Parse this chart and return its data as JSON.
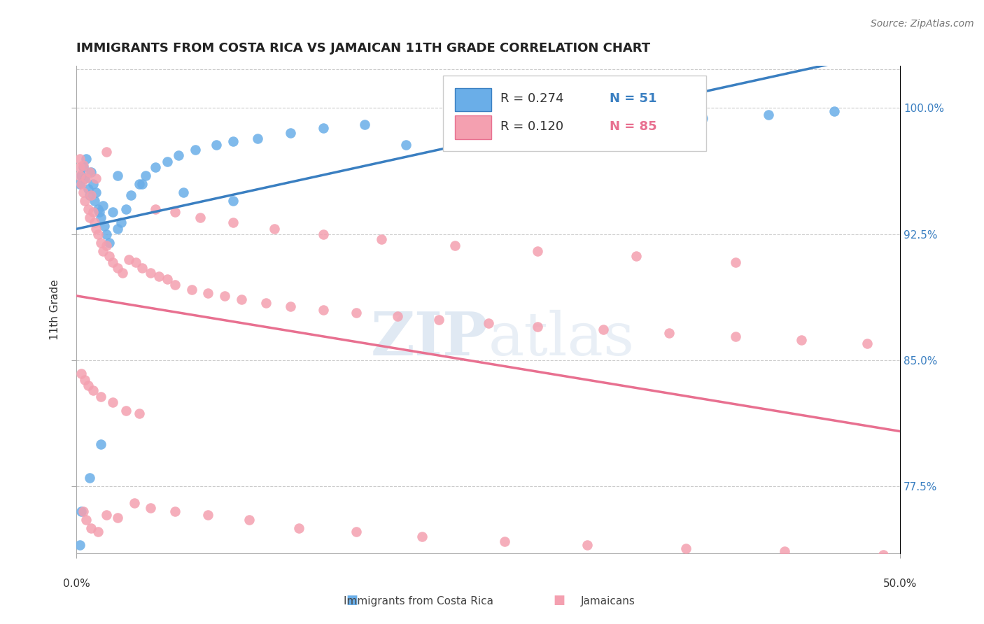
{
  "title": "IMMIGRANTS FROM COSTA RICA VS JAMAICAN 11TH GRADE CORRELATION CHART",
  "source_text": "Source: ZipAtlas.com",
  "ylabel": "11th Grade",
  "ytick_values": [
    0.775,
    0.85,
    0.925,
    1.0
  ],
  "xmin": 0.0,
  "xmax": 0.5,
  "ymin": 0.735,
  "ymax": 1.025,
  "legend_r1": "R = 0.274",
  "legend_n1": "N = 51",
  "legend_r2": "R = 0.120",
  "legend_n2": "N = 85",
  "color_blue": "#6aaee8",
  "color_pink": "#f4a0b0",
  "color_blue_line": "#3a7fc1",
  "color_pink_line": "#e87090",
  "watermark_zip": "ZIP",
  "watermark_atlas": "atlas",
  "costa_rica_x": [
    0.002,
    0.003,
    0.004,
    0.005,
    0.006,
    0.007,
    0.008,
    0.009,
    0.01,
    0.011,
    0.012,
    0.013,
    0.014,
    0.015,
    0.016,
    0.017,
    0.018,
    0.02,
    0.022,
    0.025,
    0.027,
    0.03,
    0.033,
    0.038,
    0.042,
    0.048,
    0.055,
    0.062,
    0.072,
    0.085,
    0.095,
    0.11,
    0.13,
    0.15,
    0.175,
    0.2,
    0.23,
    0.26,
    0.3,
    0.34,
    0.38,
    0.42,
    0.46,
    0.002,
    0.003,
    0.008,
    0.015,
    0.025,
    0.04,
    0.065,
    0.095
  ],
  "costa_rica_y": [
    0.955,
    0.96,
    0.965,
    0.958,
    0.97,
    0.952,
    0.948,
    0.962,
    0.955,
    0.945,
    0.95,
    0.94,
    0.938,
    0.935,
    0.942,
    0.93,
    0.925,
    0.92,
    0.938,
    0.928,
    0.932,
    0.94,
    0.948,
    0.955,
    0.96,
    0.965,
    0.968,
    0.972,
    0.975,
    0.978,
    0.98,
    0.982,
    0.985,
    0.988,
    0.99,
    0.978,
    0.982,
    0.985,
    0.988,
    0.992,
    0.994,
    0.996,
    0.998,
    0.74,
    0.76,
    0.78,
    0.8,
    0.96,
    0.955,
    0.95,
    0.945
  ],
  "jamaican_x": [
    0.002,
    0.003,
    0.004,
    0.005,
    0.006,
    0.007,
    0.008,
    0.009,
    0.01,
    0.011,
    0.012,
    0.013,
    0.015,
    0.016,
    0.018,
    0.02,
    0.022,
    0.025,
    0.028,
    0.032,
    0.036,
    0.04,
    0.045,
    0.05,
    0.055,
    0.06,
    0.07,
    0.08,
    0.09,
    0.1,
    0.115,
    0.13,
    0.15,
    0.17,
    0.195,
    0.22,
    0.25,
    0.28,
    0.32,
    0.36,
    0.4,
    0.44,
    0.48,
    0.003,
    0.005,
    0.007,
    0.01,
    0.015,
    0.022,
    0.03,
    0.038,
    0.048,
    0.06,
    0.075,
    0.095,
    0.12,
    0.15,
    0.185,
    0.23,
    0.28,
    0.34,
    0.4,
    0.002,
    0.004,
    0.006,
    0.009,
    0.013,
    0.018,
    0.025,
    0.035,
    0.045,
    0.06,
    0.08,
    0.105,
    0.135,
    0.17,
    0.21,
    0.26,
    0.31,
    0.37,
    0.43,
    0.49,
    0.002,
    0.004,
    0.008,
    0.012,
    0.018
  ],
  "jamaican_y": [
    0.96,
    0.955,
    0.95,
    0.945,
    0.958,
    0.94,
    0.935,
    0.948,
    0.938,
    0.932,
    0.928,
    0.925,
    0.92,
    0.915,
    0.918,
    0.912,
    0.908,
    0.905,
    0.902,
    0.91,
    0.908,
    0.905,
    0.902,
    0.9,
    0.898,
    0.895,
    0.892,
    0.89,
    0.888,
    0.886,
    0.884,
    0.882,
    0.88,
    0.878,
    0.876,
    0.874,
    0.872,
    0.87,
    0.868,
    0.866,
    0.864,
    0.862,
    0.86,
    0.842,
    0.838,
    0.835,
    0.832,
    0.828,
    0.825,
    0.82,
    0.818,
    0.94,
    0.938,
    0.935,
    0.932,
    0.928,
    0.925,
    0.922,
    0.918,
    0.915,
    0.912,
    0.908,
    0.965,
    0.76,
    0.755,
    0.75,
    0.748,
    0.758,
    0.756,
    0.765,
    0.762,
    0.76,
    0.758,
    0.755,
    0.75,
    0.748,
    0.745,
    0.742,
    0.74,
    0.738,
    0.736,
    0.734,
    0.97,
    0.966,
    0.962,
    0.958,
    0.974
  ]
}
